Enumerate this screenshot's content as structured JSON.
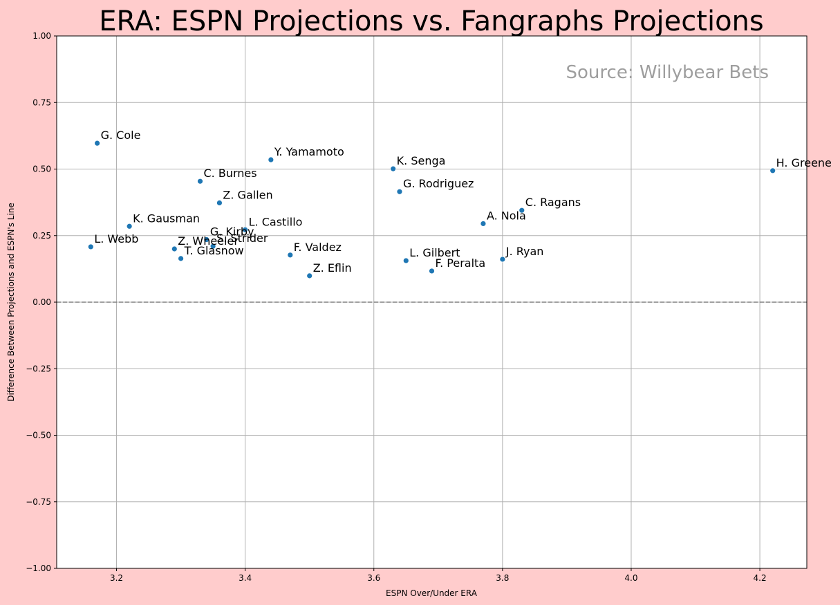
{
  "chart_data": {
    "type": "scatter",
    "title": "ERA: ESPN Projections vs. Fangraphs Projections",
    "xlabel": "ESPN Over/Under ERA",
    "ylabel": "Difference Between Projections and ESPN's Line",
    "annotation": "Source: Willybear Bets",
    "xlim": [
      3.107,
      4.273
    ],
    "ylim": [
      -1.0,
      1.0
    ],
    "xticks": [
      "3.2",
      "3.4",
      "3.6",
      "3.8",
      "4.0",
      "4.2"
    ],
    "yticks": [
      "−1.00",
      "−0.75",
      "−0.50",
      "−0.25",
      "0.00",
      "0.25",
      "0.50",
      "0.75",
      "1.00"
    ],
    "reference_line_y": 0.0,
    "grid": true,
    "marker_color": "#1f77b4",
    "reference_line_color": "#808080",
    "points": [
      {
        "label": "G. Cole",
        "x": 3.17,
        "y": 0.597
      },
      {
        "label": "Y. Yamamoto",
        "x": 3.44,
        "y": 0.535
      },
      {
        "label": "K. Senga",
        "x": 3.63,
        "y": 0.501
      },
      {
        "label": "H. Greene",
        "x": 4.22,
        "y": 0.494
      },
      {
        "label": "C. Burnes",
        "x": 3.33,
        "y": 0.454
      },
      {
        "label": "G. Rodriguez",
        "x": 3.64,
        "y": 0.415
      },
      {
        "label": "Z. Gallen",
        "x": 3.36,
        "y": 0.373
      },
      {
        "label": "C. Ragans",
        "x": 3.83,
        "y": 0.345
      },
      {
        "label": "A. Nola",
        "x": 3.77,
        "y": 0.295
      },
      {
        "label": "K. Gausman",
        "x": 3.22,
        "y": 0.285
      },
      {
        "label": "L. Castillo",
        "x": 3.4,
        "y": 0.272
      },
      {
        "label": "G. Kirby",
        "x": 3.34,
        "y": 0.235
      },
      {
        "label": "S. Strider",
        "x": 3.35,
        "y": 0.21
      },
      {
        "label": "L. Webb",
        "x": 3.16,
        "y": 0.208
      },
      {
        "label": "Z. Wheeler",
        "x": 3.29,
        "y": 0.2
      },
      {
        "label": "F. Valdez",
        "x": 3.47,
        "y": 0.177
      },
      {
        "label": "T. Glasnow",
        "x": 3.3,
        "y": 0.164
      },
      {
        "label": "J. Ryan",
        "x": 3.8,
        "y": 0.161
      },
      {
        "label": "L. Gilbert",
        "x": 3.65,
        "y": 0.156
      },
      {
        "label": "F. Peralta",
        "x": 3.69,
        "y": 0.117
      },
      {
        "label": "Z. Eflin",
        "x": 3.5,
        "y": 0.099
      }
    ]
  }
}
